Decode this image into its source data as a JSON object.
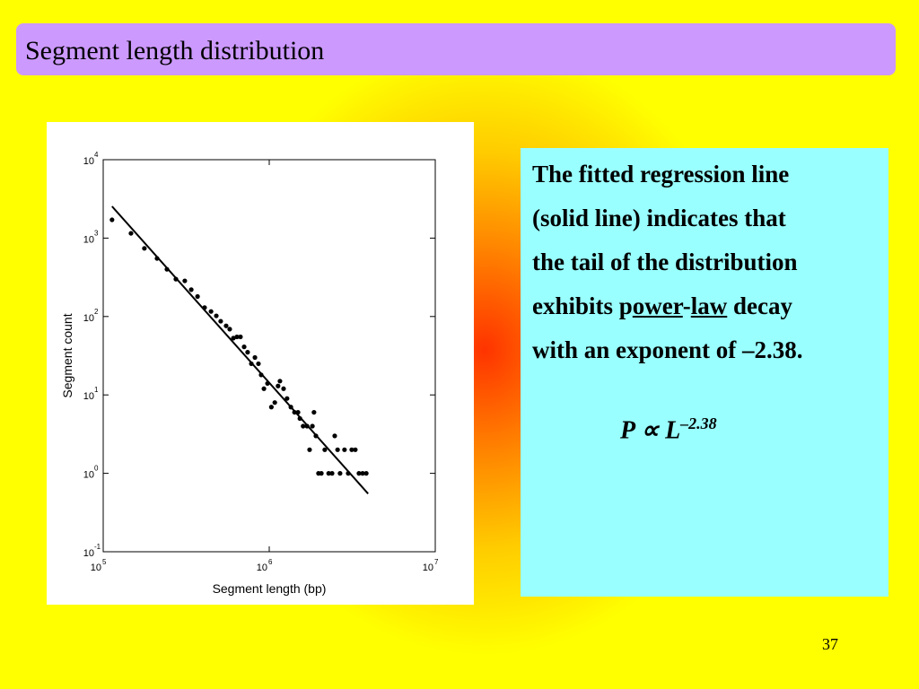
{
  "slide_title": "Segment length distribution",
  "page_number": "37",
  "text_box": {
    "lines": [
      "The fitted regression line",
      "(solid line) indicates that",
      "the tail of the distribution",
      [
        "exhibits p",
        "ower",
        "-",
        "law",
        " decay"
      ],
      "with an exponent of –2.38."
    ],
    "formula": {
      "base": "P ∝ L",
      "exponent": "–2.38"
    }
  },
  "chart_data": {
    "type": "scatter",
    "x_label": "Segment length (bp)",
    "y_label": "Segment count",
    "xscale": "log",
    "yscale": "log",
    "xlim": [
      100000,
      10000000
    ],
    "ylim": [
      0.1,
      10000
    ],
    "xticks": [
      {
        "value": 100000,
        "label": "10",
        "sup": "5"
      },
      {
        "value": 1000000,
        "label": "10",
        "sup": "6"
      },
      {
        "value": 10000000,
        "label": "10",
        "sup": "7"
      }
    ],
    "yticks": [
      {
        "value": 0.1,
        "label": "10",
        "sup": "-1"
      },
      {
        "value": 1,
        "label": "10",
        "sup": "0"
      },
      {
        "value": 10,
        "label": "10",
        "sup": "1"
      },
      {
        "value": 100,
        "label": "10",
        "sup": "2"
      },
      {
        "value": 1000,
        "label": "10",
        "sup": "3"
      },
      {
        "value": 10000,
        "label": "10",
        "sup": "4"
      }
    ],
    "color": "#000000",
    "x": [
      113000,
      147000,
      177000,
      211000,
      242000,
      274000,
      310000,
      339000,
      370000,
      408000,
      446000,
      480000,
      510000,
      550000,
      578000,
      608000,
      639000,
      671000,
      706000,
      741000,
      780000,
      820000,
      861000,
      894000,
      929000,
      976000,
      1030000,
      1080000,
      1130000,
      1160000,
      1220000,
      1280000,
      1350000,
      1420000,
      1490000,
      1530000,
      1600000,
      1690000,
      1750000,
      1820000,
      1860000,
      1910000,
      1980000,
      2060000,
      2160000,
      2280000,
      2390000,
      2480000,
      2580000,
      2670000,
      2840000,
      2990000,
      3140000,
      3300000,
      3470000,
      3650000,
      3840000
    ],
    "values": [
      1710,
      1150,
      740,
      550,
      400,
      300,
      285,
      220,
      180,
      130,
      116,
      102,
      87,
      76,
      69,
      53,
      55,
      55,
      41,
      35,
      25,
      30,
      25,
      18,
      12,
      14,
      7,
      8,
      13,
      15,
      12,
      9,
      7,
      6,
      6,
      5,
      4,
      4,
      2,
      4,
      6,
      3,
      1,
      1,
      2,
      1,
      1,
      3,
      2,
      1,
      2,
      1,
      2,
      2,
      1,
      1,
      1
    ],
    "fit": {
      "x": [
        113000,
        3940000
      ],
      "values": [
        2540,
        0.55
      ]
    }
  }
}
